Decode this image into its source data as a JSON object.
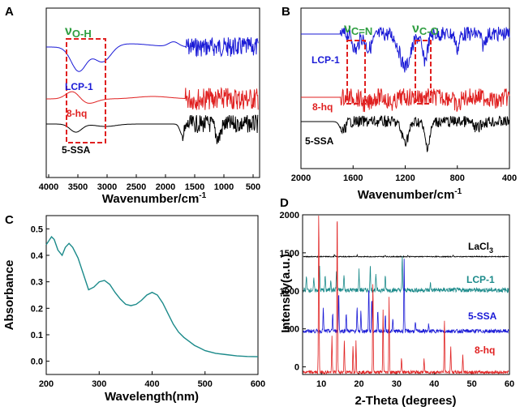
{
  "chart_data": [
    {
      "panel": "A",
      "type": "line",
      "xlabel": "Wavenumber/cm",
      "xlabel_sup": "-1",
      "xlim": [
        4000,
        400
      ],
      "xticks": [
        "4000",
        "3500",
        "3000",
        "2500",
        "2000",
        "1500",
        "1000",
        "500"
      ],
      "annotation": {
        "symbol": "ν",
        "sub": "O-H",
        "color": "#2f9e41"
      },
      "series": [
        {
          "name": "LCP-1",
          "color": "#1a1ad6"
        },
        {
          "name": "8-hq",
          "color": "#e02020"
        },
        {
          "name": "5-SSA",
          "color": "#000000"
        }
      ]
    },
    {
      "panel": "B",
      "type": "line",
      "xlabel": "Wavenumber/cm",
      "xlabel_sup": "-1",
      "xlim": [
        2000,
        400
      ],
      "xticks": [
        "2000",
        "1600",
        "1200",
        "800",
        "400"
      ],
      "annotations": [
        {
          "symbol": "ν",
          "sub": "C=N",
          "color": "#2f9e41"
        },
        {
          "symbol": "ν",
          "sub": "C-O",
          "color": "#2f9e41"
        }
      ],
      "series": [
        {
          "name": "LCP-1",
          "color": "#1a1ad6"
        },
        {
          "name": "8-hq",
          "color": "#e02020"
        },
        {
          "name": "5-SSA",
          "color": "#000000"
        }
      ]
    },
    {
      "panel": "C",
      "type": "line",
      "xlabel": "Wavelength(nm)",
      "ylabel": "Absorbance",
      "xlim": [
        200,
        600
      ],
      "ylim": [
        -0.05,
        0.55
      ],
      "xticks": [
        "200",
        "300",
        "400",
        "500",
        "600"
      ],
      "yticks": [
        "0.0",
        "0.1",
        "0.2",
        "0.3",
        "0.4",
        "0.5"
      ],
      "series": [
        {
          "name": "absorbance",
          "color": "#1b8a8a",
          "x": [
            200,
            210,
            215,
            222,
            230,
            236,
            243,
            250,
            260,
            270,
            280,
            290,
            300,
            310,
            320,
            330,
            340,
            350,
            360,
            370,
            380,
            390,
            400,
            410,
            420,
            430,
            440,
            450,
            460,
            470,
            480,
            490,
            500,
            520,
            540,
            560,
            580,
            600
          ],
          "y": [
            0.44,
            0.47,
            0.46,
            0.42,
            0.4,
            0.43,
            0.445,
            0.43,
            0.39,
            0.33,
            0.27,
            0.28,
            0.3,
            0.305,
            0.29,
            0.26,
            0.235,
            0.215,
            0.21,
            0.215,
            0.23,
            0.25,
            0.26,
            0.25,
            0.22,
            0.18,
            0.14,
            0.11,
            0.09,
            0.075,
            0.06,
            0.05,
            0.04,
            0.03,
            0.025,
            0.02,
            0.018,
            0.017
          ]
        }
      ]
    },
    {
      "panel": "D",
      "type": "line",
      "xlabel": "2-Theta (degrees)",
      "ylabel": "Intensity(a.u.)",
      "xlim": [
        5,
        60
      ],
      "ylim": [
        -100,
        2000
      ],
      "xticks": [
        "10",
        "20",
        "30",
        "40",
        "50",
        "60"
      ],
      "yticks": [
        "0",
        "500",
        "1000",
        "1500",
        "2000"
      ],
      "series": [
        {
          "name": "LaCl",
          "sub": "3",
          "color": "#000000",
          "baseline": 1450
        },
        {
          "name": "LCP-1",
          "color": "#1b8a8a",
          "baseline": 970
        },
        {
          "name": "5-SSA",
          "color": "#1a1ad6",
          "baseline": 470
        },
        {
          "name": "8-hq",
          "color": "#e02020",
          "baseline": -70
        }
      ]
    }
  ]
}
